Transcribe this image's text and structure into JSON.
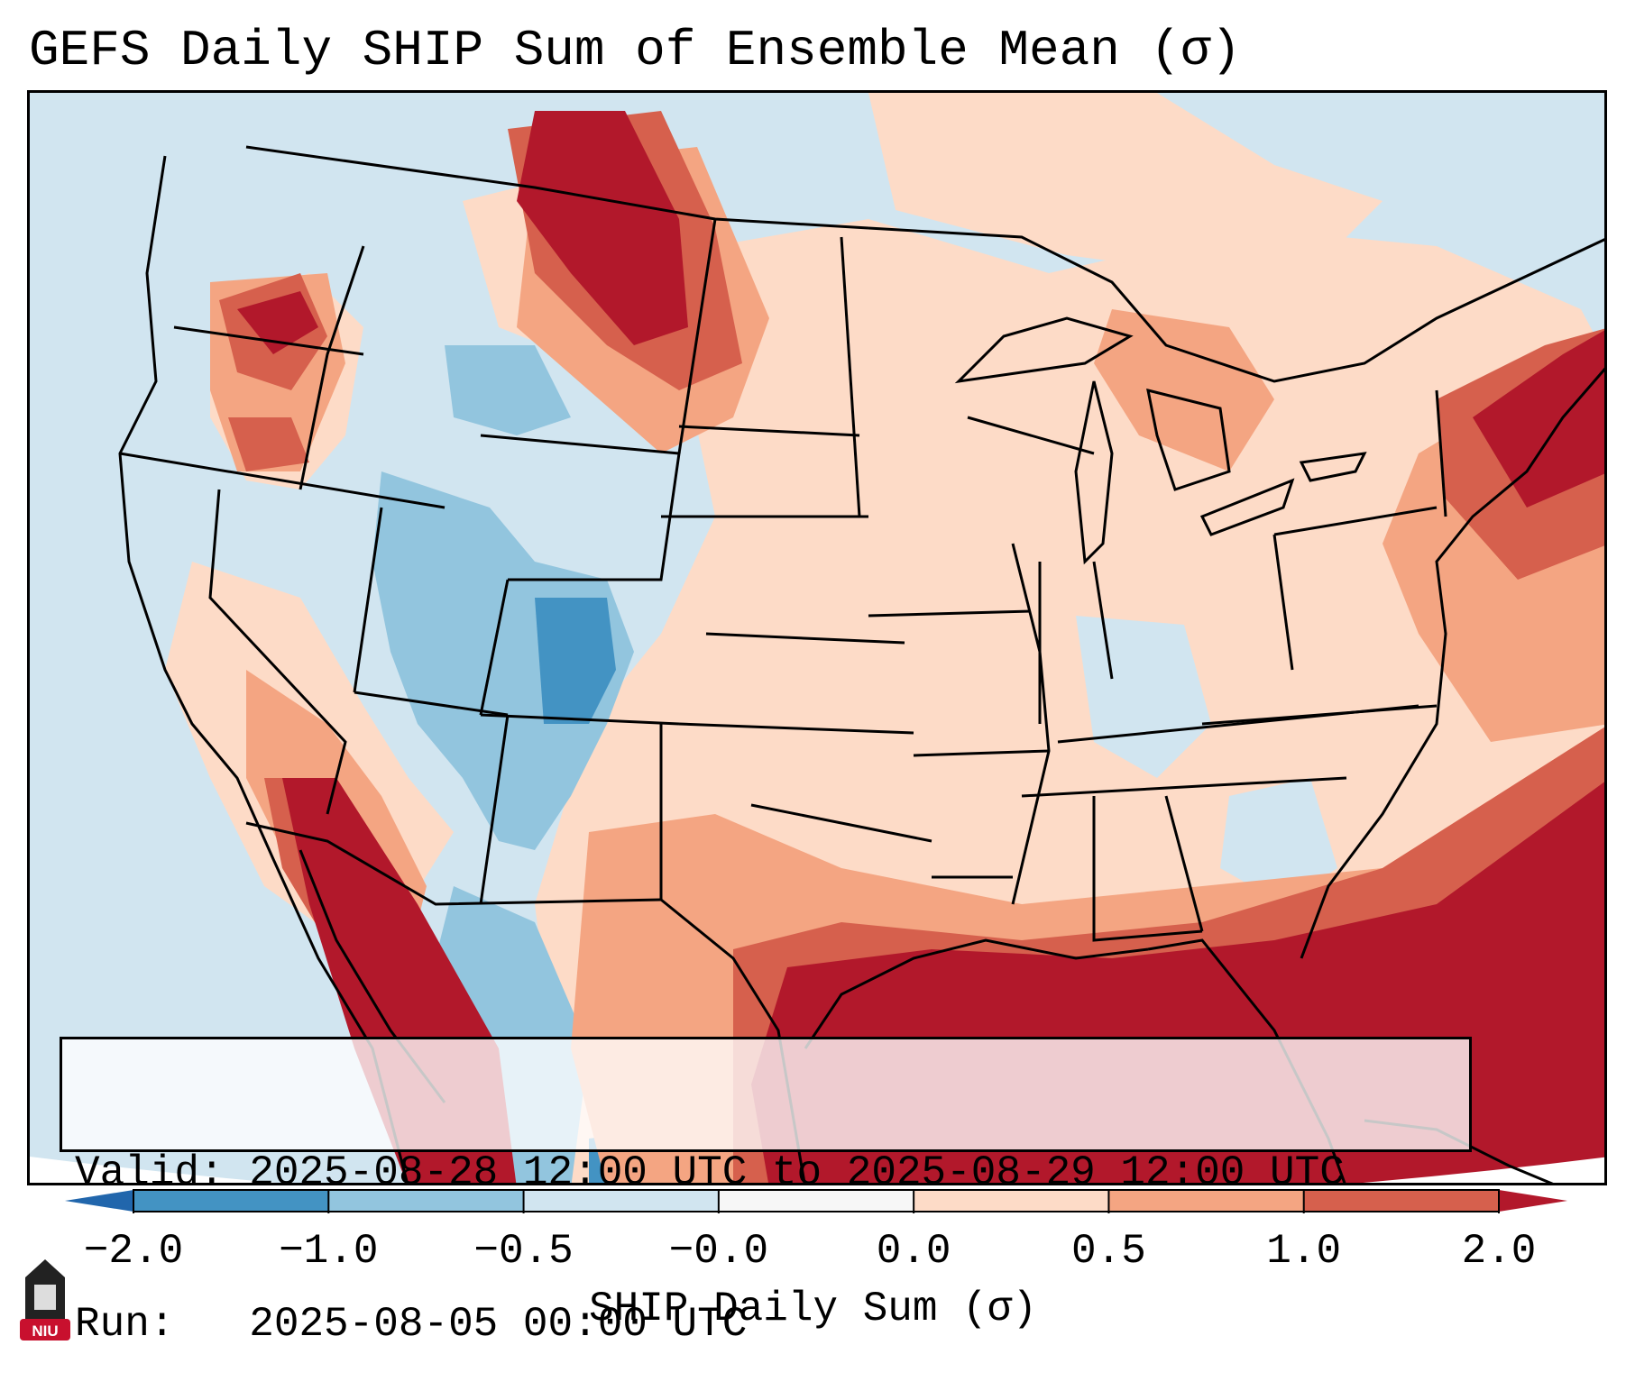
{
  "title": "GEFS Daily SHIP Sum of Ensemble Mean (σ)",
  "info": {
    "valid_line": "Valid: 2025-08-28 12:00 UTC to 2025-08-29 12:00 UTC",
    "run_line": "Run:   2025-08-05 00:00 UTC"
  },
  "colorbar": {
    "label": "SHIP Daily Sum (σ)",
    "ticks": [
      "−2.0",
      "−1.0",
      "−0.5",
      "−0.0",
      "0.0",
      "0.5",
      "1.0",
      "2.0"
    ],
    "bins": [
      {
        "from": -2.0,
        "to": -1.0,
        "color": "#4393c3"
      },
      {
        "from": -1.0,
        "to": -0.5,
        "color": "#92c5de"
      },
      {
        "from": -0.5,
        "to": -0.0,
        "color": "#d1e5f0"
      },
      {
        "from": -0.0,
        "to": 0.0,
        "color": "#f7f7f7"
      },
      {
        "from": 0.0,
        "to": 0.5,
        "color": "#fddbc7"
      },
      {
        "from": 0.5,
        "to": 1.0,
        "color": "#f4a582"
      },
      {
        "from": 1.0,
        "to": 2.0,
        "color": "#d6604d"
      }
    ],
    "under_color": "#2166ac",
    "over_color": "#b2182b"
  },
  "logo": {
    "text": "NIU"
  },
  "colors": {
    "very_high": "#b2182b",
    "high": "#d6604d",
    "moderate": "#f4a582",
    "slight_positive": "#fddbc7",
    "slight_negative": "#d1e5f0",
    "moderate_negative": "#92c5de",
    "low": "#4393c3"
  }
}
